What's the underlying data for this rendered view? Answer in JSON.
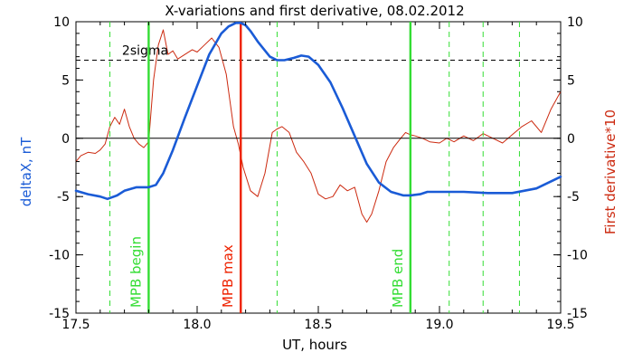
{
  "chart_data": {
    "type": "line",
    "title": "X-variations and first derivative, 08.02.2012",
    "xlabel": "UT, hours",
    "ylabel": "deltaX, nT",
    "ylabel_right": "First derivative*10",
    "xlim": [
      17.5,
      19.5
    ],
    "ylim": [
      -15,
      10
    ],
    "ylim_right": [
      -15,
      10
    ],
    "x_ticks": [
      17.5,
      18.0,
      18.5,
      19.0,
      19.5
    ],
    "x_tick_labels": [
      "17.5",
      "18.0",
      "18.5",
      "19.0",
      "19.5"
    ],
    "y_ticks": [
      -15,
      -10,
      -5,
      0,
      5,
      10
    ],
    "y_tick_labels": [
      "-15",
      "-10",
      "-5",
      "0",
      "5",
      "10"
    ],
    "y_right_ticks": [
      -15,
      -10,
      -5,
      0,
      5,
      10
    ],
    "y_right_tick_labels": [
      "-15",
      "-10",
      "-5",
      "0",
      "5",
      "10"
    ],
    "colors": {
      "deltaX": "#1a5bd6",
      "derivative": "#cc2a10",
      "mpb_lines": "#33dd33",
      "mpb_max_line": "#ee2200",
      "axes": "#000000",
      "left_label": "#1a5bd6",
      "right_label": "#cc2a10"
    },
    "series": [
      {
        "key": "deltaX",
        "axis": "left",
        "x": [
          17.5,
          17.55,
          17.6,
          17.63,
          17.67,
          17.7,
          17.75,
          17.8,
          17.83,
          17.86,
          17.9,
          17.95,
          18.0,
          18.05,
          18.1,
          18.13,
          18.16,
          18.18,
          18.2,
          18.22,
          18.25,
          18.3,
          18.33,
          18.36,
          18.4,
          18.43,
          18.46,
          18.5,
          18.55,
          18.6,
          18.65,
          18.7,
          18.75,
          18.8,
          18.85,
          18.88,
          18.92,
          18.95,
          19.0,
          19.1,
          19.2,
          19.3,
          19.4,
          19.5
        ],
        "y": [
          -4.5,
          -4.8,
          -5.0,
          -5.2,
          -4.9,
          -4.5,
          -4.2,
          -4.2,
          -4.0,
          -3.0,
          -1.0,
          1.8,
          4.5,
          7.2,
          9.0,
          9.6,
          9.9,
          9.9,
          9.7,
          9.2,
          8.3,
          7.0,
          6.7,
          6.7,
          6.9,
          7.1,
          7.0,
          6.3,
          4.8,
          2.6,
          0.2,
          -2.2,
          -3.8,
          -4.6,
          -4.9,
          -4.9,
          -4.8,
          -4.6,
          -4.6,
          -4.6,
          -4.7,
          -4.7,
          -4.3,
          -3.3
        ]
      },
      {
        "key": "derivative",
        "axis": "right",
        "x": [
          17.5,
          17.52,
          17.55,
          17.58,
          17.6,
          17.62,
          17.64,
          17.66,
          17.68,
          17.7,
          17.72,
          17.74,
          17.76,
          17.78,
          17.8,
          17.82,
          17.84,
          17.86,
          17.88,
          17.9,
          17.92,
          17.95,
          17.98,
          18.0,
          18.03,
          18.06,
          18.09,
          18.12,
          18.15,
          18.17,
          18.19,
          18.22,
          18.25,
          18.28,
          18.31,
          18.33,
          18.35,
          18.38,
          18.41,
          18.44,
          18.47,
          18.5,
          18.53,
          18.56,
          18.59,
          18.62,
          18.65,
          18.68,
          18.7,
          18.72,
          18.75,
          18.78,
          18.81,
          18.84,
          18.86,
          18.88,
          18.9,
          18.93,
          18.96,
          19.0,
          19.03,
          19.06,
          19.1,
          19.14,
          19.18,
          19.22,
          19.26,
          19.3,
          19.34,
          19.38,
          19.42,
          19.46,
          19.5
        ],
        "y": [
          -2.0,
          -1.5,
          -1.2,
          -1.3,
          -1.0,
          -0.5,
          1.0,
          1.8,
          1.2,
          2.5,
          1.0,
          0.0,
          -0.5,
          -0.8,
          -0.3,
          5.0,
          8.0,
          9.3,
          7.2,
          7.5,
          6.8,
          7.2,
          7.6,
          7.4,
          8.0,
          8.6,
          7.8,
          5.5,
          1.0,
          -0.5,
          -2.5,
          -4.5,
          -5.0,
          -3.0,
          0.5,
          0.8,
          1.0,
          0.5,
          -1.2,
          -2.0,
          -3.0,
          -4.8,
          -5.2,
          -5.0,
          -4.0,
          -4.5,
          -4.2,
          -6.5,
          -7.2,
          -6.5,
          -4.5,
          -2.0,
          -0.8,
          0.0,
          0.5,
          0.3,
          0.2,
          0.0,
          -0.3,
          -0.4,
          0.0,
          -0.3,
          0.2,
          -0.2,
          0.4,
          0.0,
          -0.4,
          0.3,
          1.0,
          1.5,
          0.5,
          2.5,
          4.0
        ]
      }
    ],
    "horizontal_lines": [
      {
        "key": "sigma",
        "axis": "left",
        "y": 6.7,
        "style": "dashed",
        "label": "2sigma"
      },
      {
        "key": "zero",
        "axis": "left",
        "y": 0,
        "style": "solid",
        "label": ""
      }
    ],
    "vertical_lines": [
      {
        "x": 17.64,
        "style": "dashed",
        "color_key": "mpb_lines",
        "label": ""
      },
      {
        "x": 17.8,
        "style": "solid",
        "color_key": "mpb_lines",
        "label": "MPB begin"
      },
      {
        "x": 18.18,
        "style": "solid",
        "color_key": "mpb_max_line",
        "label": "MPB max"
      },
      {
        "x": 18.33,
        "style": "dashed",
        "color_key": "mpb_lines",
        "label": ""
      },
      {
        "x": 18.88,
        "style": "solid",
        "color_key": "mpb_lines",
        "label": "MPB end"
      },
      {
        "x": 19.04,
        "style": "dashed",
        "color_key": "mpb_lines",
        "label": ""
      },
      {
        "x": 19.18,
        "style": "dashed",
        "color_key": "mpb_lines",
        "label": ""
      },
      {
        "x": 19.33,
        "style": "dashed",
        "color_key": "mpb_lines",
        "label": ""
      }
    ],
    "grid": false,
    "legend": "none"
  }
}
